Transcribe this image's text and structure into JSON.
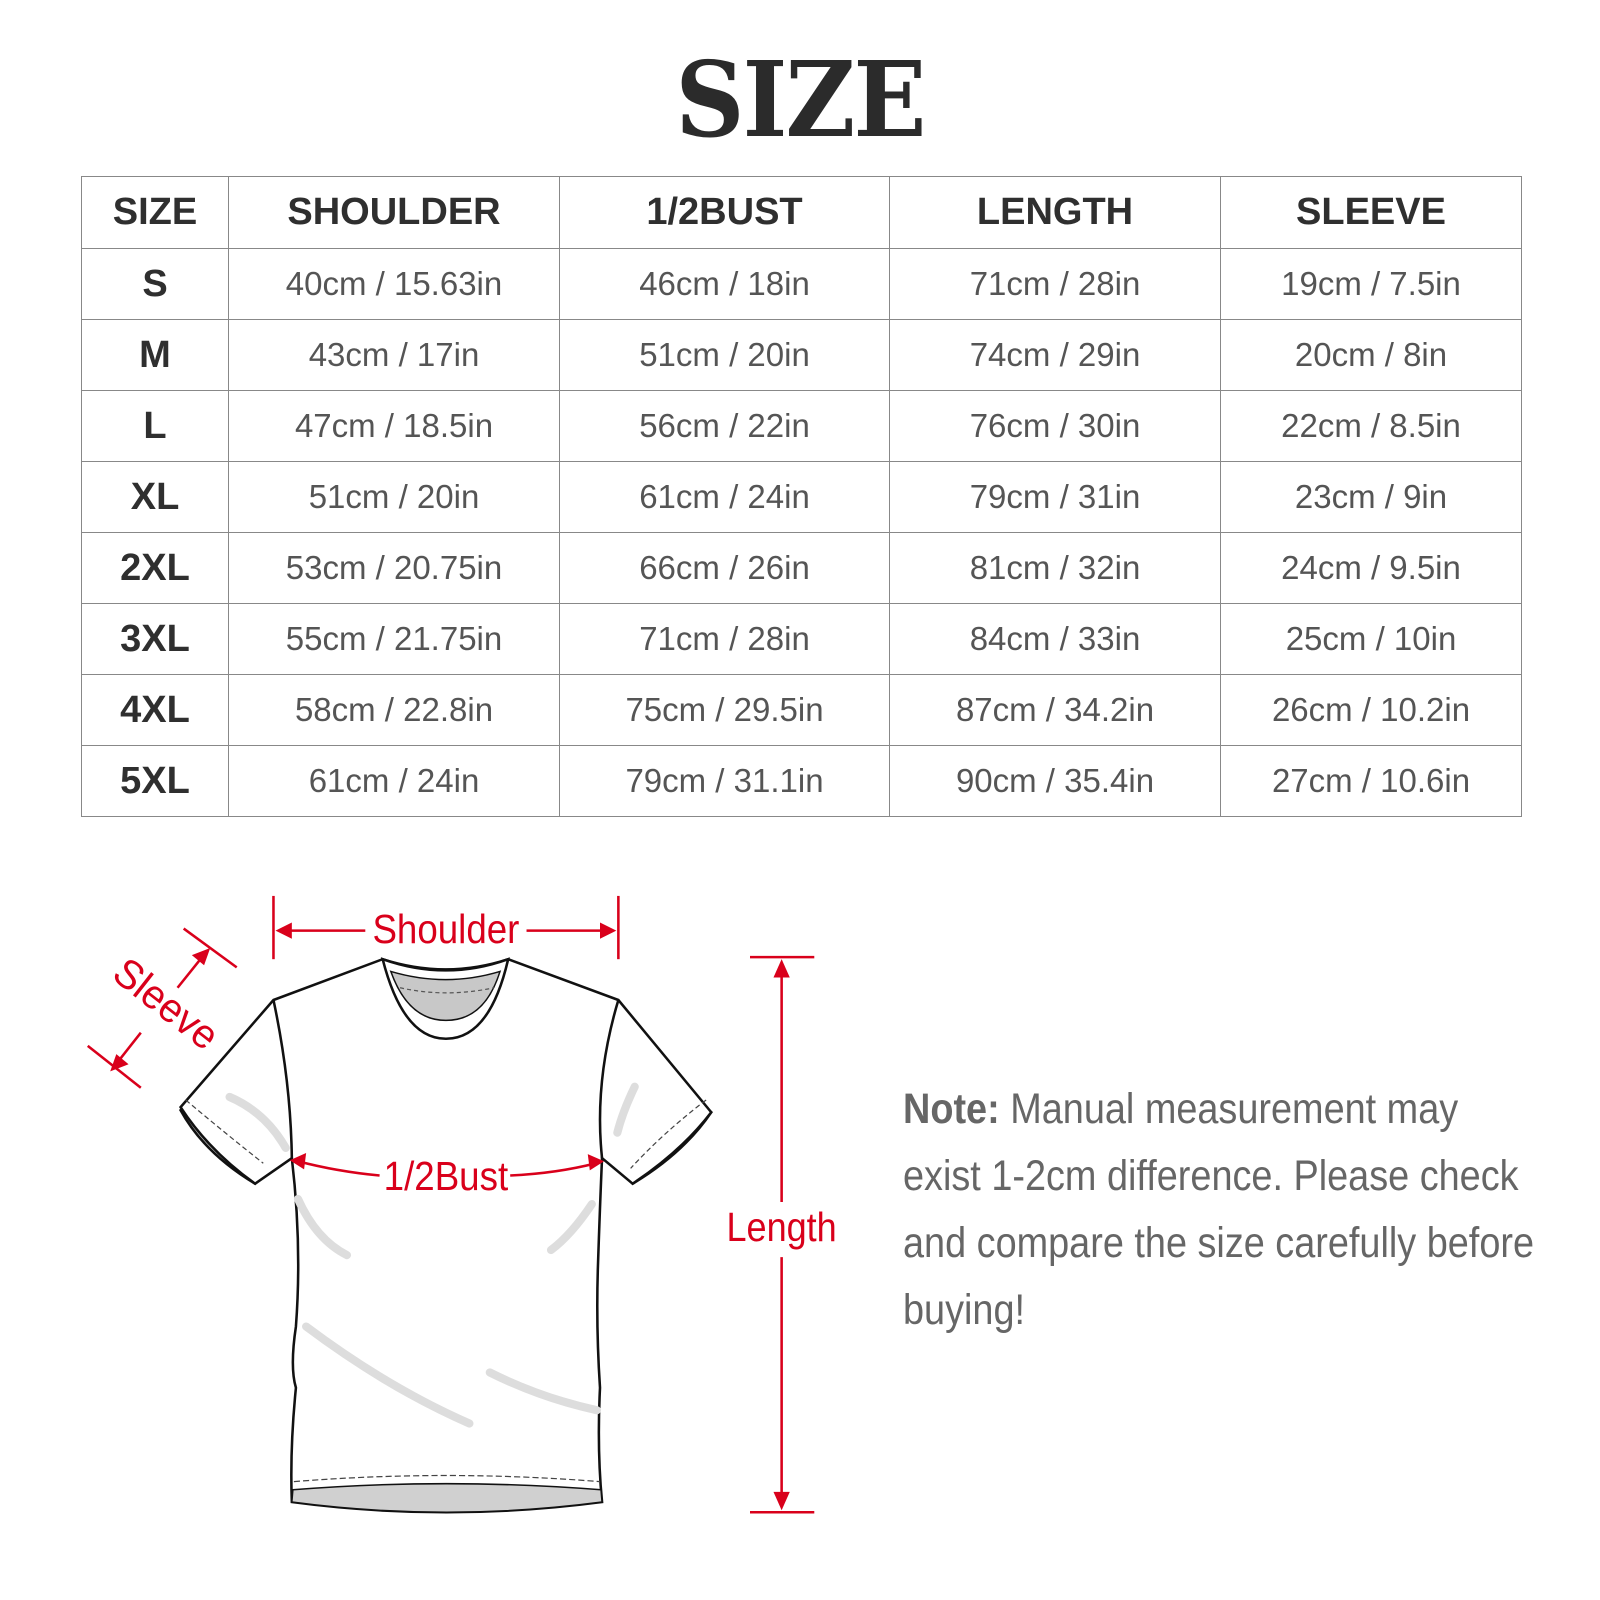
{
  "title": "SIZE",
  "table": {
    "headers": [
      "SIZE",
      "SHOULDER",
      "1/2BUST",
      "LENGTH",
      "SLEEVE"
    ],
    "rows": [
      [
        "S",
        "40cm / 15.63in",
        "46cm / 18in",
        "71cm / 28in",
        "19cm / 7.5in"
      ],
      [
        "M",
        "43cm / 17in",
        "51cm / 20in",
        "74cm / 29in",
        "20cm / 8in"
      ],
      [
        "L",
        "47cm / 18.5in",
        "56cm / 22in",
        "76cm / 30in",
        "22cm / 8.5in"
      ],
      [
        "XL",
        "51cm / 20in",
        "61cm / 24in",
        "79cm / 31in",
        "23cm / 9in"
      ],
      [
        "2XL",
        "53cm / 20.75in",
        "66cm / 26in",
        "81cm / 32in",
        "24cm / 9.5in"
      ],
      [
        "3XL",
        "55cm / 21.75in",
        "71cm / 28in",
        "84cm / 33in",
        "25cm / 10in"
      ],
      [
        "4XL",
        "58cm / 22.8in",
        "75cm / 29.5in",
        "87cm / 34.2in",
        "26cm / 10.2in"
      ],
      [
        "5XL",
        "61cm / 24in",
        "79cm / 31.1in",
        "90cm / 35.4in",
        "27cm / 10.6in"
      ]
    ]
  },
  "diagram": {
    "shoulder_label": "Shoulder",
    "sleeve_label": "Sleeve",
    "bust_label": "1/2Bust",
    "length_label": "Length",
    "accent_color": "#d9001b"
  },
  "note": {
    "label": "Note:",
    "text": " Manual measurement may exist 1-2cm difference. Please check and compare the size carefully before buying!"
  }
}
